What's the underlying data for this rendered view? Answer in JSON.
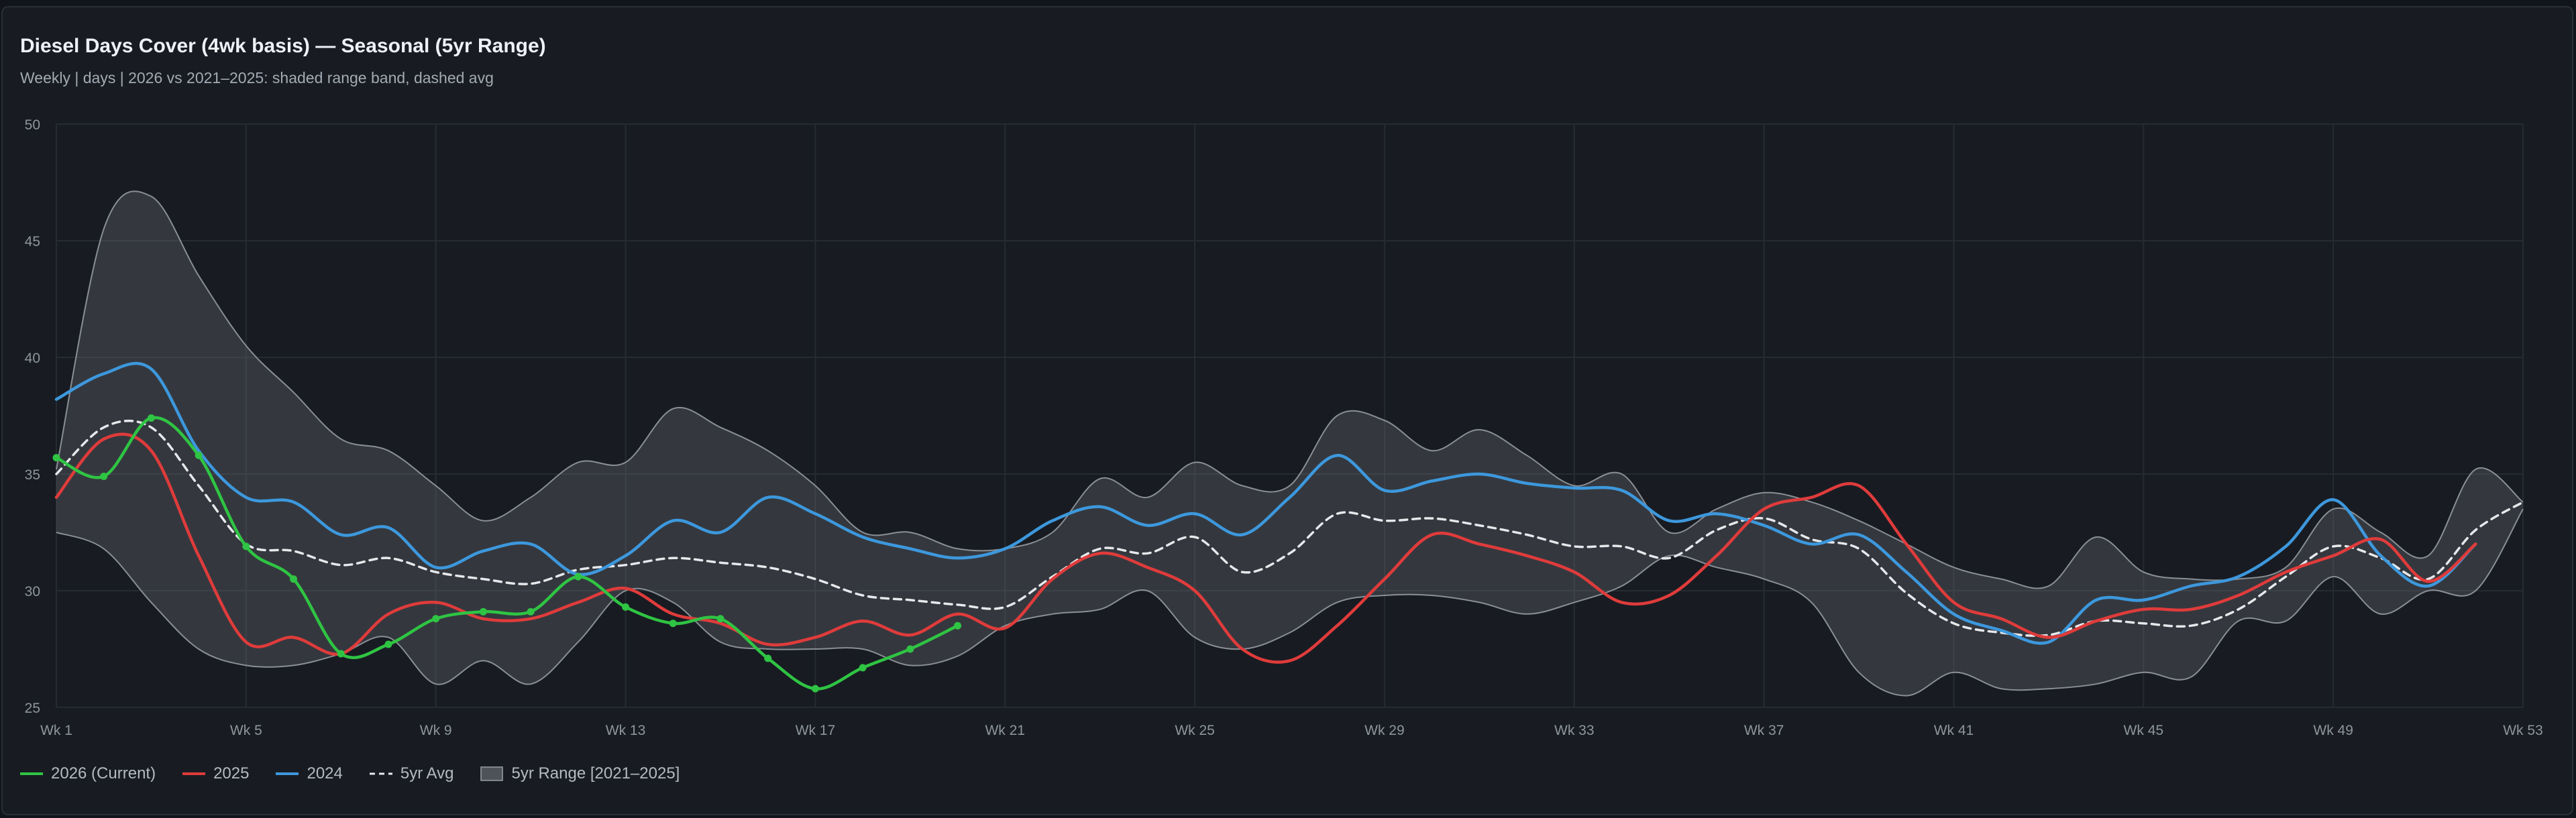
{
  "header": {
    "title": "Diesel Days Cover (4wk basis) — Seasonal (5yr Range)",
    "subtitle": "Weekly | days | 2026 vs 2021–2025: shaded range band, dashed avg"
  },
  "legend": [
    {
      "label": "2026 (Current)",
      "kind": "line",
      "color": "#2fc443"
    },
    {
      "label": "2025",
      "kind": "line",
      "color": "#e03b3b"
    },
    {
      "label": "2024",
      "kind": "line",
      "color": "#3d98dd"
    },
    {
      "label": "5yr Avg",
      "kind": "dash",
      "color": "#e6e8eb"
    },
    {
      "label": "5yr Range [2021–2025]",
      "kind": "band",
      "color": "#7b7f86"
    }
  ],
  "chart_data": {
    "type": "line",
    "title": "Diesel Days Cover (4wk basis) — Seasonal (5yr Range)",
    "subtitle": "Weekly | days | 2026 vs 2021–2025: shaded range band, dashed avg",
    "xlabel": "",
    "ylabel": "",
    "x_range": [
      1,
      53
    ],
    "ylim": [
      25,
      50
    ],
    "yticks": [
      25,
      30,
      35,
      40,
      45,
      50
    ],
    "xticks": [
      1,
      5,
      9,
      13,
      17,
      21,
      25,
      29,
      33,
      37,
      41,
      45,
      49,
      53
    ],
    "xtick_labels": [
      "Wk 1",
      "Wk 5",
      "Wk 9",
      "Wk 13",
      "Wk 17",
      "Wk 21",
      "Wk 25",
      "Wk 29",
      "Wk 33",
      "Wk 37",
      "Wk 41",
      "Wk 45",
      "Wk 49",
      "Wk 53"
    ],
    "grid": true,
    "legend_position": "bottom-left",
    "range_band": {
      "name": "5yr Range [2021–2025]",
      "upper": [
        35.2,
        45.5,
        46.9,
        43.5,
        40.5,
        38.5,
        36.5,
        36.0,
        34.5,
        33.0,
        34.0,
        35.5,
        35.5,
        37.8,
        37.0,
        36.0,
        34.5,
        32.5,
        32.5,
        31.8,
        31.8,
        32.5,
        34.8,
        34.0,
        35.5,
        34.5,
        34.5,
        37.5,
        37.3,
        36.0,
        36.9,
        35.8,
        34.5,
        35.0,
        32.5,
        33.5,
        34.2,
        33.8,
        33.0,
        32.0,
        31.0,
        30.5,
        30.2,
        32.3,
        30.8,
        30.5,
        30.5,
        31.0,
        33.5,
        32.5,
        31.5,
        35.2,
        33.8
      ],
      "lower": [
        32.5,
        31.8,
        29.5,
        27.5,
        26.8,
        26.8,
        27.3,
        28.0,
        26.0,
        27.0,
        26.0,
        27.8,
        30.0,
        29.5,
        27.8,
        27.5,
        27.5,
        27.5,
        26.8,
        27.2,
        28.5,
        29.0,
        29.2,
        30.0,
        28.0,
        27.5,
        28.2,
        29.5,
        29.8,
        29.8,
        29.5,
        29.0,
        29.5,
        30.2,
        31.5,
        31.0,
        30.5,
        29.5,
        26.5,
        25.5,
        26.5,
        25.8,
        25.8,
        26.0,
        26.5,
        26.3,
        28.7,
        28.7,
        30.6,
        29.0,
        30.0,
        30.0,
        33.5
      ]
    },
    "series": [
      {
        "name": "2026 (Current)",
        "color": "#2fc443",
        "markers": true,
        "values": [
          35.7,
          34.9,
          37.4,
          35.8,
          31.9,
          30.5,
          27.3,
          27.7,
          28.8,
          29.1,
          29.1,
          30.6,
          29.3,
          28.6,
          28.8,
          27.1,
          25.8,
          26.7,
          27.5,
          28.5
        ]
      },
      {
        "name": "2025",
        "color": "#e03b3b",
        "values": [
          34.0,
          36.5,
          36.0,
          31.5,
          27.8,
          28.0,
          27.3,
          29.0,
          29.5,
          28.8,
          28.8,
          29.5,
          30.1,
          29.0,
          28.6,
          27.7,
          28.0,
          28.7,
          28.1,
          29.0,
          28.4,
          30.5,
          31.6,
          31.0,
          30.0,
          27.5,
          27.0,
          28.5,
          30.5,
          32.4,
          32.0,
          31.5,
          30.8,
          29.5,
          29.8,
          31.5,
          33.5,
          34.0,
          34.5,
          32.0,
          29.5,
          28.8,
          28.0,
          28.7,
          29.2,
          29.2,
          29.8,
          30.8,
          31.5,
          32.2,
          30.4,
          32.0
        ]
      },
      {
        "name": "2024",
        "color": "#3d98dd",
        "values": [
          38.2,
          39.3,
          39.5,
          36.0,
          34.0,
          33.8,
          32.4,
          32.7,
          31.0,
          31.7,
          32.0,
          30.7,
          31.5,
          33.0,
          32.5,
          34.0,
          33.3,
          32.3,
          31.8,
          31.4,
          31.8,
          33.0,
          33.6,
          32.8,
          33.3,
          32.4,
          34.0,
          35.8,
          34.3,
          34.7,
          35.0,
          34.6,
          34.4,
          34.3,
          33.0,
          33.3,
          32.8,
          32.0,
          32.4,
          30.8,
          29.0,
          28.3,
          27.8,
          29.6,
          29.6,
          30.2,
          30.6,
          31.9,
          33.9,
          31.5,
          30.2,
          32.0
        ]
      },
      {
        "name": "5yr Avg",
        "color": "#e6e8eb",
        "dashed": true,
        "values": [
          35.0,
          37.0,
          37.0,
          34.5,
          32.0,
          31.7,
          31.1,
          31.4,
          30.8,
          30.5,
          30.3,
          30.9,
          31.1,
          31.4,
          31.2,
          31.0,
          30.5,
          29.8,
          29.6,
          29.4,
          29.3,
          30.6,
          31.8,
          31.6,
          32.3,
          30.8,
          31.6,
          33.3,
          33.0,
          33.1,
          32.8,
          32.4,
          31.9,
          31.9,
          31.4,
          32.6,
          33.1,
          32.2,
          31.8,
          29.9,
          28.6,
          28.2,
          28.1,
          28.7,
          28.6,
          28.5,
          29.2,
          30.6,
          31.9,
          31.4,
          30.5,
          32.6,
          33.8
        ]
      }
    ]
  }
}
